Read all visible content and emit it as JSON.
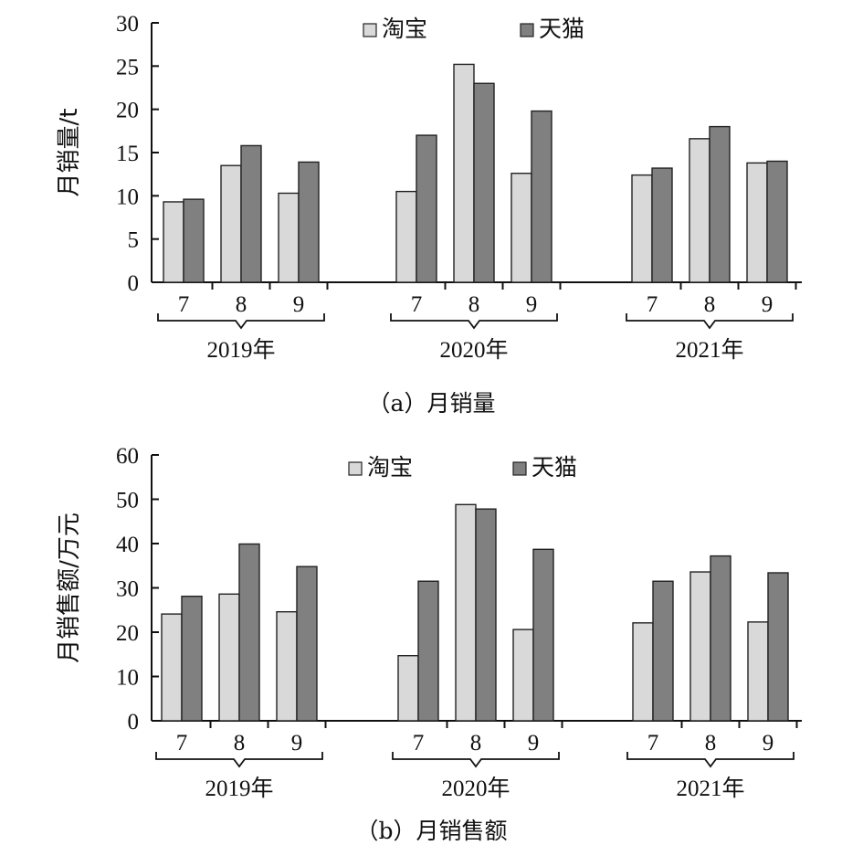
{
  "figure": {
    "caption_a": "（a）月销量",
    "caption_b": "（b）月销售额"
  },
  "chart_data": [
    {
      "type": "bar",
      "categories": [
        "7",
        "8",
        "9",
        "7",
        "8",
        "9",
        "7",
        "8",
        "9"
      ],
      "groups": [
        {
          "label": "2019年",
          "months": [
            "7",
            "8",
            "9"
          ]
        },
        {
          "label": "2020年",
          "months": [
            "7",
            "8",
            "9"
          ]
        },
        {
          "label": "2021年",
          "months": [
            "7",
            "8",
            "9"
          ]
        }
      ],
      "series": [
        {
          "name": "淘宝",
          "color": "#d9d9d9",
          "values": [
            9.3,
            13.5,
            10.3,
            10.5,
            25.2,
            12.6,
            12.4,
            16.6,
            13.8
          ]
        },
        {
          "name": "天猫",
          "color": "#808080",
          "values": [
            9.6,
            15.8,
            13.9,
            17.0,
            23.0,
            19.8,
            13.2,
            18.0,
            14.0
          ]
        }
      ],
      "ylabel": "月销量/t",
      "ylim": [
        0,
        30
      ],
      "yticks": [
        0,
        5,
        10,
        15,
        20,
        25,
        30
      ],
      "grid": false,
      "legend": "top-center"
    },
    {
      "type": "bar",
      "categories": [
        "7",
        "8",
        "9",
        "7",
        "8",
        "9",
        "7",
        "8",
        "9"
      ],
      "groups": [
        {
          "label": "2019年",
          "months": [
            "7",
            "8",
            "9"
          ]
        },
        {
          "label": "2020年",
          "months": [
            "7",
            "8",
            "9"
          ]
        },
        {
          "label": "2021年",
          "months": [
            "7",
            "8",
            "9"
          ]
        }
      ],
      "series": [
        {
          "name": "淘宝",
          "color": "#d9d9d9",
          "values": [
            24.1,
            28.6,
            24.6,
            14.7,
            48.8,
            20.6,
            22.1,
            33.6,
            22.3
          ]
        },
        {
          "name": "天猫",
          "color": "#808080",
          "values": [
            28.1,
            39.9,
            34.8,
            31.5,
            47.8,
            38.7,
            31.5,
            37.2,
            33.4
          ]
        }
      ],
      "ylabel": "月销售额/万元",
      "ylim": [
        0,
        60
      ],
      "yticks": [
        0,
        10,
        20,
        30,
        40,
        50,
        60
      ],
      "grid": false,
      "legend": "top-center"
    }
  ]
}
